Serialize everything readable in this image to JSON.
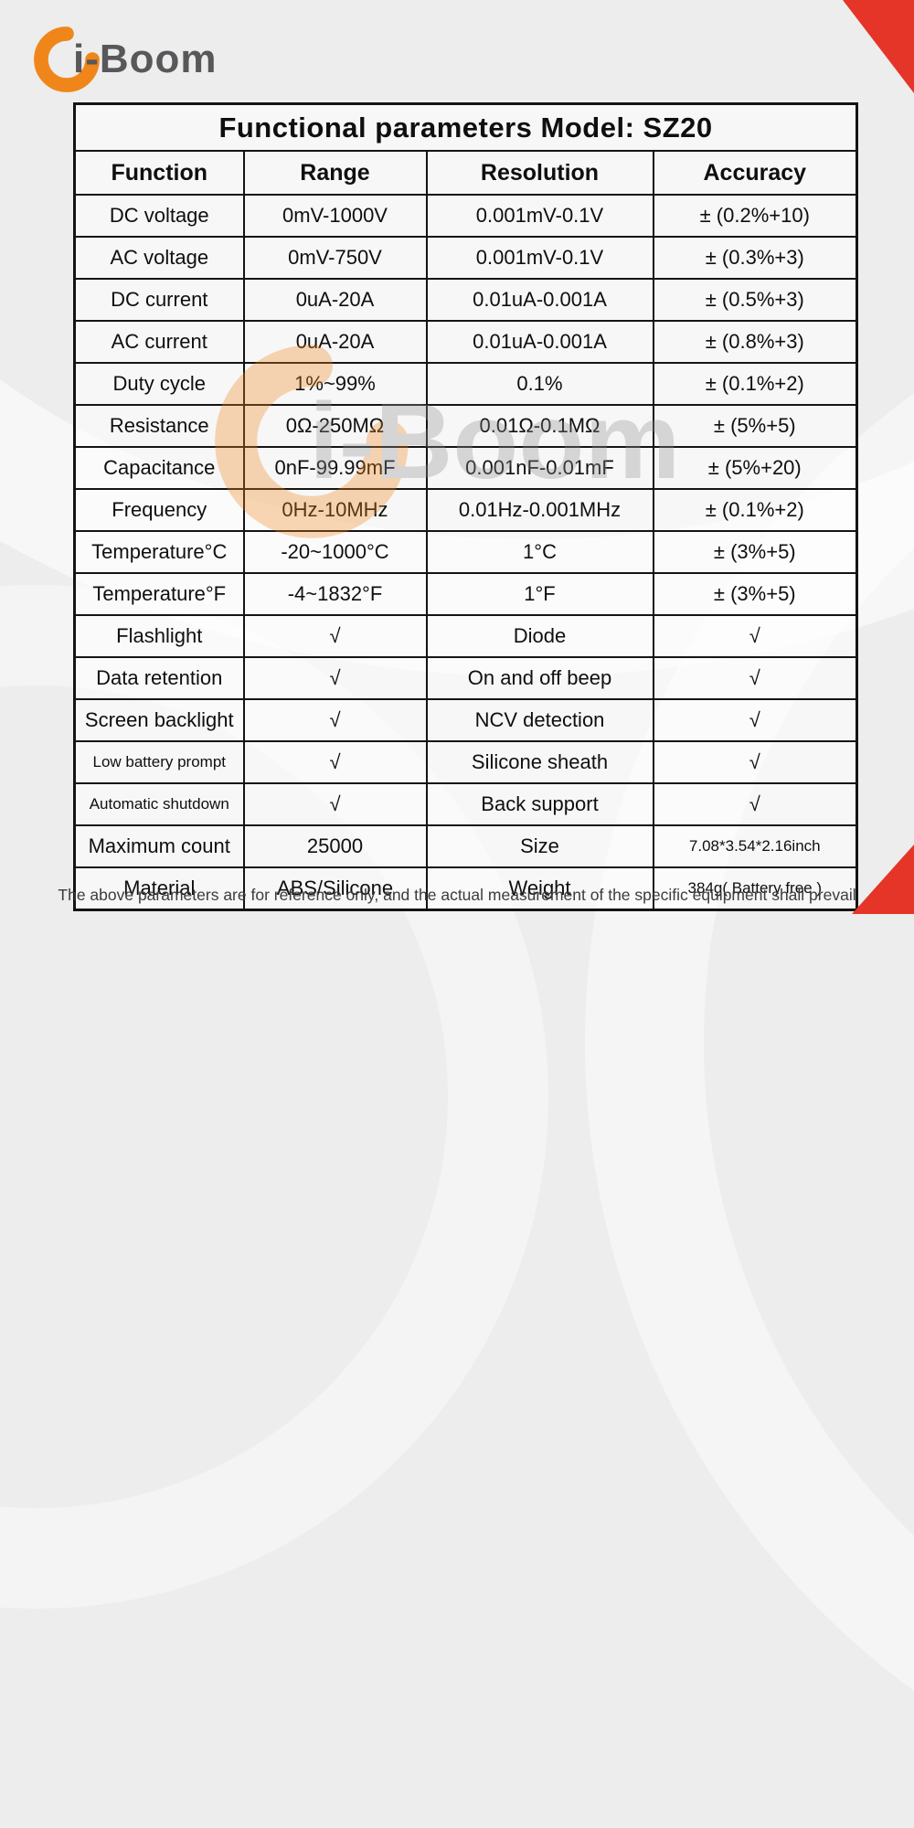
{
  "brand": {
    "name": "i-Boom"
  },
  "watermark": {
    "text": "i-Boom"
  },
  "colors": {
    "brand_orange": "#F0861A",
    "ribbon_red": "#E53528",
    "brand_text_gray": "#58585A",
    "table_border_black": "#141414"
  },
  "table": {
    "title": "Functional parameters Model: SZ20",
    "headers": [
      "Function",
      "Range",
      "Resolution",
      "Accuracy"
    ],
    "rows": [
      [
        "DC voltage",
        "0mV-1000V",
        "0.001mV-0.1V",
        "± (0.2%+10)"
      ],
      [
        "AC voltage",
        "0mV-750V",
        "0.001mV-0.1V",
        "± (0.3%+3)"
      ],
      [
        "DC current",
        "0uA-20A",
        "0.01uA-0.001A",
        "± (0.5%+3)"
      ],
      [
        "AC current",
        "0uA-20A",
        "0.01uA-0.001A",
        "± (0.8%+3)"
      ],
      [
        "Duty cycle",
        "1%~99%",
        "0.1%",
        "± (0.1%+2)"
      ],
      [
        "Resistance",
        "0Ω-250MΩ",
        "0.01Ω-0.1MΩ",
        "± (5%+5)"
      ],
      [
        "Capacitance",
        "0nF-99.99mF",
        "0.001nF-0.01mF",
        "± (5%+20)"
      ],
      [
        "Frequency",
        "0Hz-10MHz",
        "0.01Hz-0.001MHz",
        "± (0.1%+2)"
      ],
      [
        "Temperature°C",
        "-20~1000°C",
        "1°C",
        "± (3%+5)"
      ],
      [
        "Temperature°F",
        "-4~1832°F",
        "1°F",
        "± (3%+5)"
      ],
      [
        "Flashlight",
        "√",
        "Diode",
        "√"
      ],
      [
        "Data retention",
        "√",
        "On and off beep",
        "√"
      ],
      [
        "Screen backlight",
        "√",
        "NCV detection",
        "√"
      ],
      [
        "Low battery prompt",
        "√",
        "Silicone sheath",
        "√"
      ],
      [
        "Automatic shutdown",
        "√",
        "Back support",
        "√"
      ],
      [
        "Maximum count",
        "25000",
        "Size",
        "7.08*3.54*2.16inch"
      ],
      [
        "Material",
        "ABS/Silicone",
        "Weight",
        "384g( Battery free )"
      ]
    ]
  },
  "footer": {
    "note": "The above parameters are for reference only, and the actual measurement of the specific equipment shall prevail"
  }
}
